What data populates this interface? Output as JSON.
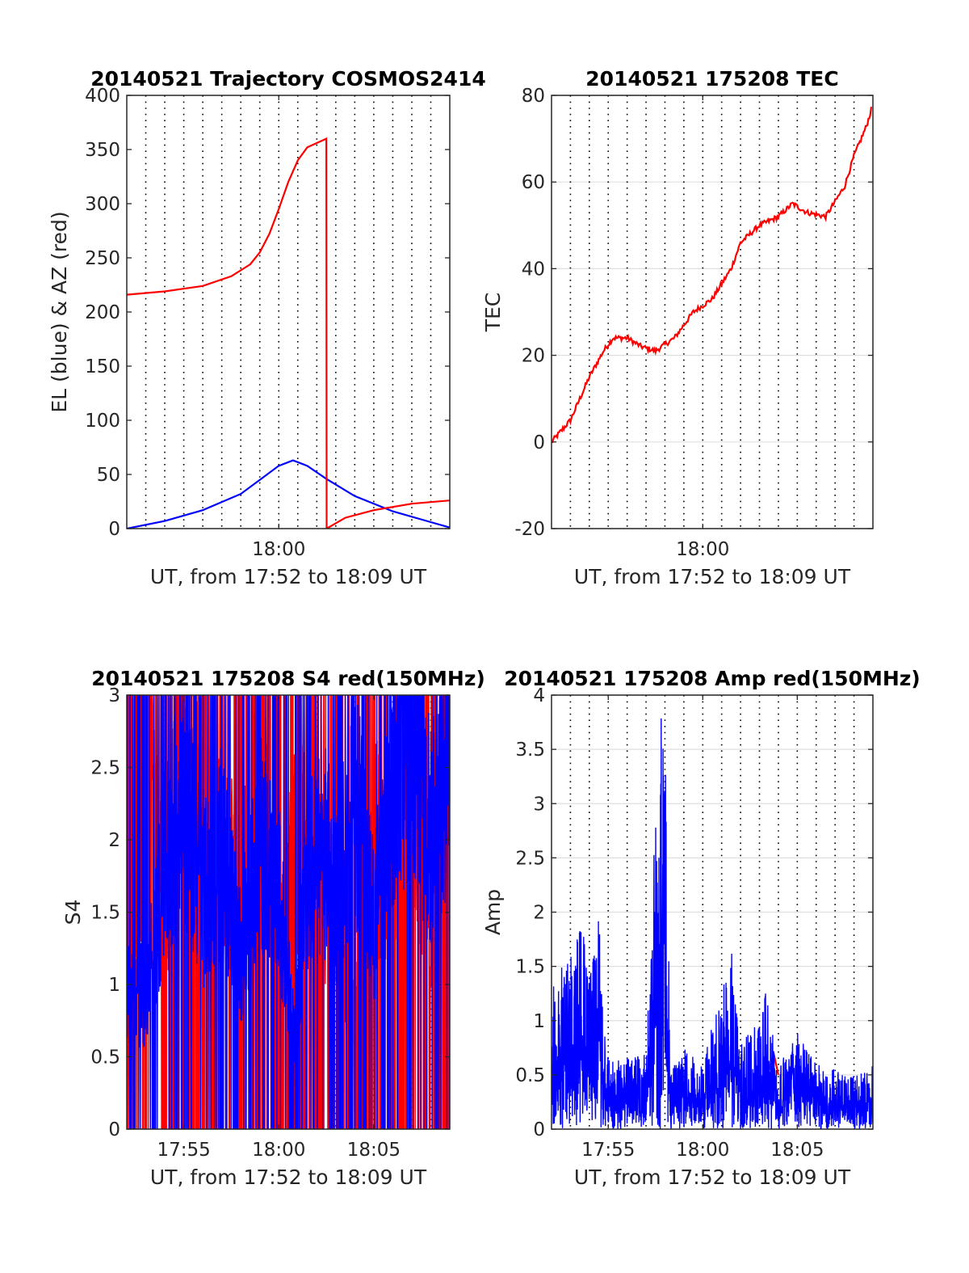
{
  "chart_data": [
    {
      "type": "line",
      "title": "20140521 Trajectory COSMOS2414",
      "xlabel": "UT, from 17:52 to 18:09 UT",
      "ylabel": "EL (blue) & AZ (red)",
      "xlim": [
        "17:52",
        "18:09"
      ],
      "ylim": [
        0,
        400
      ],
      "xticks": [
        {
          "t": "18:00",
          "label": "18:00"
        }
      ],
      "yticks": [
        0,
        50,
        100,
        150,
        200,
        250,
        300,
        350,
        400
      ],
      "grid": "x-dotted-minutes",
      "series": [
        {
          "color": "#0000ff",
          "points": [
            [
              "17:52:00",
              0
            ],
            [
              "17:54:00",
              7
            ],
            [
              "17:56:00",
              17
            ],
            [
              "17:58:00",
              32
            ],
            [
              "17:59:00",
              45
            ],
            [
              "18:00:00",
              58
            ],
            [
              "18:00:45",
              63
            ],
            [
              "18:01:30",
              58
            ],
            [
              "18:02:30",
              46
            ],
            [
              "18:04:00",
              30
            ],
            [
              "18:06:00",
              16
            ],
            [
              "18:08:00",
              6
            ],
            [
              "18:09:00",
              1
            ]
          ]
        },
        {
          "color": "#ff0000",
          "points": [
            [
              "17:52:00",
              216
            ],
            [
              "17:54:00",
              219
            ],
            [
              "17:56:00",
              224
            ],
            [
              "17:57:30",
              233
            ],
            [
              "17:58:30",
              244
            ],
            [
              "17:59:00",
              255
            ],
            [
              "17:59:30",
              272
            ],
            [
              "18:00:00",
              295
            ],
            [
              "18:00:30",
              320
            ],
            [
              "18:01:00",
              340
            ],
            [
              "18:01:30",
              352
            ],
            [
              "18:02:30",
              360
            ],
            [
              "18:02:31",
              0
            ],
            [
              "18:03:30",
              10
            ],
            [
              "18:05:00",
              17
            ],
            [
              "18:07:00",
              23
            ],
            [
              "18:09:00",
              26
            ]
          ]
        }
      ]
    },
    {
      "type": "line",
      "title": "20140521 175208 TEC",
      "xlabel": "UT, from 17:52 to 18:09 UT",
      "ylabel": "TEC",
      "xlim": [
        "17:52",
        "18:09"
      ],
      "ylim": [
        -20,
        80
      ],
      "xticks": [
        {
          "t": "18:00",
          "label": "18:00"
        }
      ],
      "yticks": [
        -20,
        0,
        20,
        40,
        60,
        80
      ],
      "grid": "x-dotted-minutes-y-solid",
      "series": [
        {
          "color": "#ff0000",
          "points": [
            [
              "17:52:00",
              0
            ],
            [
              "17:53:00",
              5
            ],
            [
              "17:54:00",
              15
            ],
            [
              "17:54:45",
              21
            ],
            [
              "17:55:15",
              24
            ],
            [
              "17:56:00",
              24
            ],
            [
              "17:56:45",
              22
            ],
            [
              "17:57:30",
              21
            ],
            [
              "17:58:30",
              24
            ],
            [
              "17:59:30",
              30
            ],
            [
              "18:00:30",
              33
            ],
            [
              "18:01:30",
              40
            ],
            [
              "18:02:00",
              46
            ],
            [
              "18:03:00",
              50
            ],
            [
              "18:04:00",
              52
            ],
            [
              "18:04:45",
              55
            ],
            [
              "18:05:30",
              53
            ],
            [
              "18:06:30",
              52
            ],
            [
              "18:07:30",
              59
            ],
            [
              "18:08:00",
              66
            ],
            [
              "18:08:40",
              73
            ],
            [
              "18:09:00",
              78
            ]
          ]
        }
      ]
    },
    {
      "type": "line",
      "title": "20140521 175208 S4 red(150MHz)",
      "xlabel": "UT, from 17:52 to 18:09 UT",
      "ylabel": "S4",
      "xlim": [
        "17:52",
        "18:09"
      ],
      "ylim": [
        0,
        3
      ],
      "xticks": [
        {
          "t": "17:55",
          "label": "17:55"
        },
        {
          "t": "18:00",
          "label": "18:00"
        },
        {
          "t": "18:05",
          "label": "18:05"
        }
      ],
      "yticks": [
        0,
        0.5,
        1,
        1.5,
        2,
        2.5,
        3
      ],
      "grid": "x-dotted-minutes",
      "series": [
        {
          "color": "#ff0000",
          "note": "dense noisy trace, frequently saturating between 0 and 3",
          "points": [
            [
              "17:52:00",
              0.9
            ],
            [
              "17:53:00",
              2.5
            ],
            [
              "17:54:00",
              1.5
            ],
            [
              "17:55:00",
              3
            ],
            [
              "17:56:00",
              1.8
            ],
            [
              "17:57:00",
              2.2
            ],
            [
              "17:58:00",
              1.5
            ],
            [
              "17:59:00",
              2.4
            ],
            [
              "18:00:00",
              1.2
            ],
            [
              "18:01:00",
              2.0
            ],
            [
              "18:02:00",
              1.8
            ],
            [
              "18:03:00",
              1.5
            ],
            [
              "18:04:00",
              0.7
            ],
            [
              "18:05:00",
              2.0
            ],
            [
              "18:06:00",
              1.7
            ],
            [
              "18:07:00",
              2.3
            ],
            [
              "18:08:00",
              1.5
            ],
            [
              "18:09:00",
              2.8
            ]
          ]
        },
        {
          "color": "#0000ff",
          "note": "dense noisy trace, mostly 1 to 3",
          "points": [
            [
              "17:52:00",
              1.0
            ],
            [
              "17:53:00",
              0.9
            ],
            [
              "17:54:00",
              1.8
            ],
            [
              "17:55:00",
              2.3
            ],
            [
              "17:56:00",
              1.6
            ],
            [
              "17:57:00",
              1.9
            ],
            [
              "17:58:00",
              1.2
            ],
            [
              "17:59:00",
              2.0
            ],
            [
              "18:00:00",
              1.6
            ],
            [
              "18:00:50",
              0.6
            ],
            [
              "18:01:30",
              1.8
            ],
            [
              "18:02:30",
              1.9
            ],
            [
              "18:03:00",
              1.6
            ],
            [
              "18:04:00",
              2.3
            ],
            [
              "18:05:00",
              1.4
            ],
            [
              "18:06:00",
              2.5
            ],
            [
              "18:07:00",
              2.9
            ],
            [
              "18:08:00",
              2.0
            ],
            [
              "18:09:00",
              2.7
            ]
          ]
        }
      ]
    },
    {
      "type": "line",
      "title": "20140521 175208 Amp red(150MHz)",
      "xlabel": "UT, from 17:52 to 18:09 UT",
      "ylabel": "Amp",
      "xlim": [
        "17:52",
        "18:09"
      ],
      "ylim": [
        0,
        4
      ],
      "xticks": [
        {
          "t": "17:55",
          "label": "17:55"
        },
        {
          "t": "18:00",
          "label": "18:00"
        },
        {
          "t": "18:05",
          "label": "18:05"
        }
      ],
      "yticks": [
        0,
        0.5,
        1,
        1.5,
        2,
        2.5,
        3,
        3.5,
        4
      ],
      "grid": "x-dotted-minutes-y-solid",
      "series": [
        {
          "color": "#ff0000",
          "points": [
            [
              "18:03:30",
              0.55
            ],
            [
              "18:03:45",
              0.7
            ],
            [
              "18:04:00",
              0.5
            ]
          ]
        },
        {
          "color": "#0000ff",
          "note": "dense noisy trace; envelope of peaks shown",
          "points": [
            [
              "17:52:00",
              1.3
            ],
            [
              "17:53:00",
              1.65
            ],
            [
              "17:53:40",
              1.95
            ],
            [
              "17:54:10",
              1.55
            ],
            [
              "17:54:30",
              2.0
            ],
            [
              "17:54:40",
              1.4
            ],
            [
              "17:55:00",
              0.7
            ],
            [
              "17:56:00",
              0.65
            ],
            [
              "17:57:00",
              0.7
            ],
            [
              "17:57:45",
              4.0
            ],
            [
              "17:58:00",
              3.55
            ],
            [
              "17:58:20",
              0.55
            ],
            [
              "17:59:00",
              0.75
            ],
            [
              "18:00:00",
              0.6
            ],
            [
              "18:01:00",
              1.3
            ],
            [
              "18:01:30",
              1.7
            ],
            [
              "18:02:00",
              0.8
            ],
            [
              "18:03:00",
              1.0
            ],
            [
              "18:03:20",
              1.35
            ],
            [
              "18:04:00",
              0.6
            ],
            [
              "18:05:00",
              0.9
            ],
            [
              "18:06:00",
              0.6
            ],
            [
              "18:07:00",
              0.55
            ],
            [
              "18:08:00",
              0.5
            ],
            [
              "18:09:00",
              0.6
            ]
          ]
        }
      ]
    }
  ]
}
